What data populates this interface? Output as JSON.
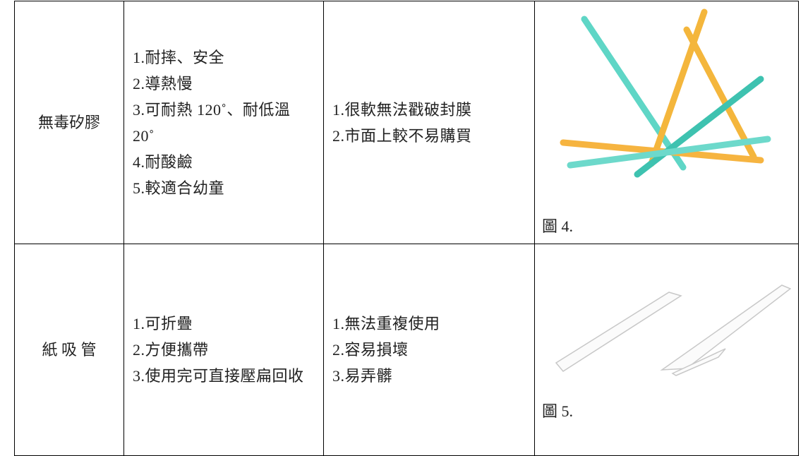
{
  "table": {
    "rows": [
      {
        "material": "無毒矽膠",
        "advantages": [
          "1.耐摔、安全",
          "2.導熱慢",
          "3.可耐熱 120˚、耐低溫 20˚",
          "4.耐酸鹼",
          "5.較適合幼童"
        ],
        "disadvantages": [
          "1.很軟無法戳破封膜",
          "2.市面上較不易購買"
        ],
        "caption": "圖 4."
      },
      {
        "material": "紙 吸 管",
        "advantages": [
          "1.可折疊",
          "2.方便攜帶",
          "3.使用完可直接壓扁回收"
        ],
        "disadvantages": [
          "1.無法重複使用",
          "2.容易損壞",
          "3.易弄髒"
        ],
        "caption": "圖 5."
      }
    ]
  }
}
